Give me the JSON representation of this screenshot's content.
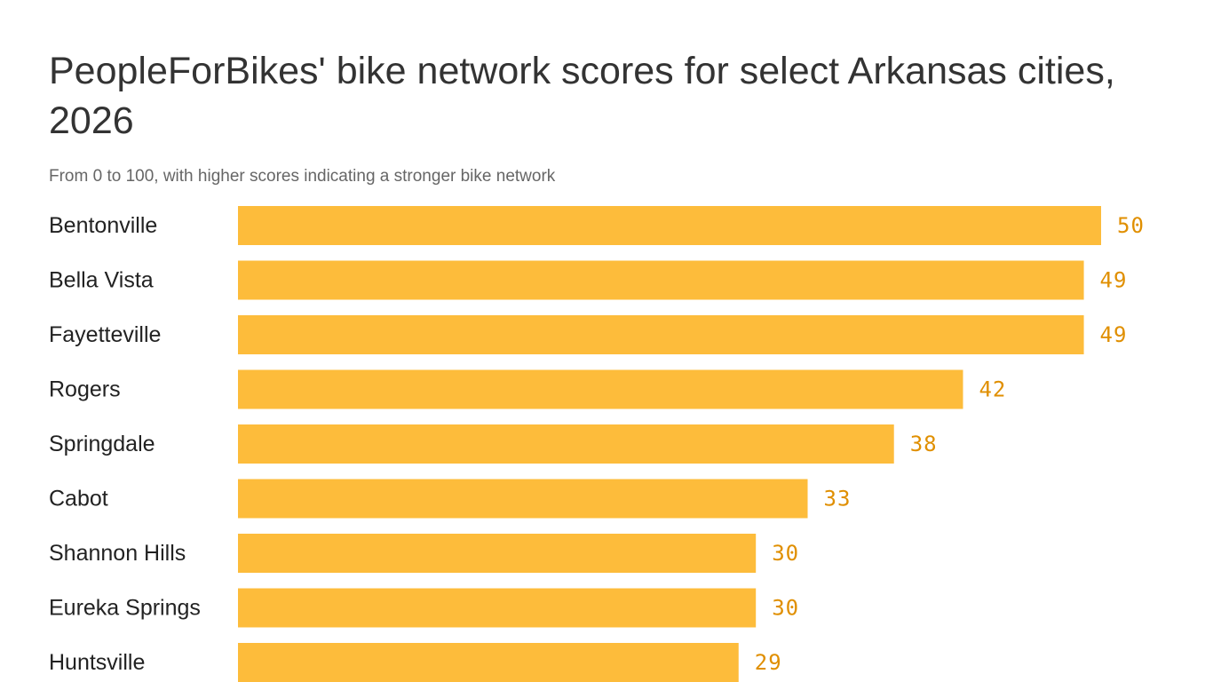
{
  "chart_data": {
    "type": "bar",
    "orientation": "horizontal",
    "title": "PeopleForBikes' bike network scores for select Arkansas cities, 2026",
    "subtitle": "From 0 to 100, with higher scores indicating a stronger bike network",
    "categories": [
      "Bentonville",
      "Bella Vista",
      "Fayetteville",
      "Rogers",
      "Springdale",
      "Cabot",
      "Shannon Hills",
      "Eureka Springs",
      "Huntsville"
    ],
    "values": [
      50,
      49,
      49,
      42,
      38,
      33,
      30,
      30,
      29
    ],
    "xlim": [
      0,
      50
    ],
    "grid": false,
    "legend": "none",
    "colors": {
      "bar": "#FDBC3B",
      "value_label": "#E08F00",
      "category_label": "#222222",
      "title": "#333333",
      "subtitle": "#666666"
    }
  }
}
